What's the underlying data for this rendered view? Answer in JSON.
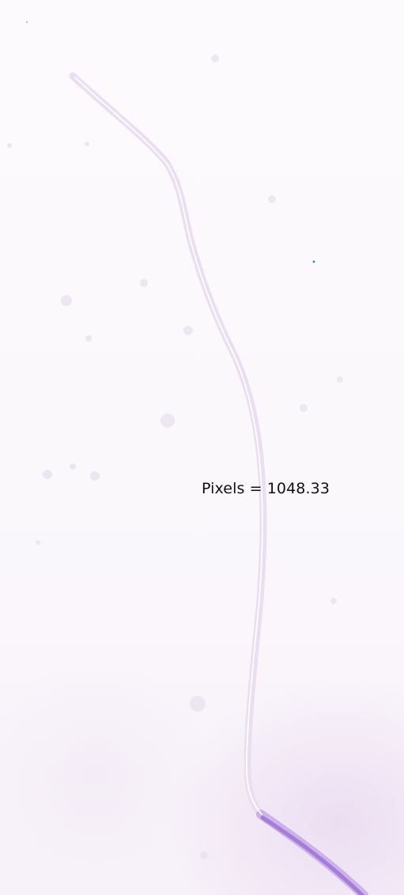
{
  "measurement": {
    "label": "Pixels = 1048.33"
  },
  "colors": {
    "background": "#fbf8fc",
    "fiber_light": "#e6d9f1",
    "fiber_dark": "#a77ad6",
    "trace": "#ffffff",
    "label": "#111111"
  }
}
